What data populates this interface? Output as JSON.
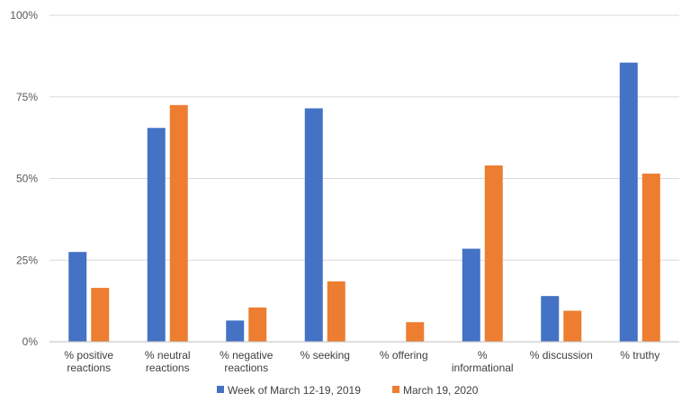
{
  "chart_data": {
    "type": "bar",
    "title": "",
    "xlabel": "",
    "ylabel": "",
    "categories": [
      [
        "% positive",
        "reactions"
      ],
      [
        "% neutral",
        "reactions"
      ],
      [
        "% negative",
        "reactions"
      ],
      [
        "% seeking"
      ],
      [
        "% offering"
      ],
      [
        "%",
        "informational"
      ],
      [
        "% discussion"
      ],
      [
        "% truthy"
      ]
    ],
    "series": [
      {
        "name": "Week of March 12-19, 2019",
        "color": "#4472C4",
        "values": [
          27.5,
          65.5,
          6.5,
          71.5,
          0,
          28.5,
          14,
          85.5
        ]
      },
      {
        "name": "March 19, 2020",
        "color": "#ED7D31",
        "values": [
          16.5,
          72.5,
          10.5,
          18.5,
          6,
          54,
          9.5,
          51.5
        ]
      }
    ],
    "ylim": [
      0,
      100
    ],
    "yticks": [
      0,
      25,
      50,
      75,
      100
    ],
    "ytick_labels": [
      "0%",
      "25%",
      "50%",
      "75%",
      "100%"
    ],
    "grid": true,
    "gridline_color": "#d9d9d9",
    "legend_position": "bottom"
  }
}
